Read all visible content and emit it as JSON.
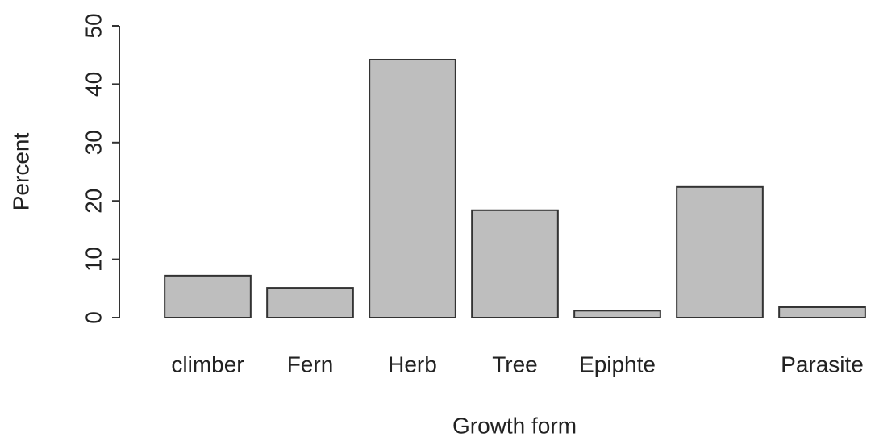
{
  "chart_data": {
    "type": "bar",
    "x_label": "Growth form",
    "y_label": "Percent",
    "categories": [
      "climber",
      "Fern",
      "Herb",
      "Tree",
      "Epiphte",
      null,
      "Parasite"
    ],
    "values": [
      7.2,
      5.1,
      44.2,
      18.4,
      1.2,
      22.4,
      1.8
    ],
    "color": "#bebebe",
    "ylim": [
      0,
      50
    ],
    "yticks": [
      0,
      10,
      20,
      30,
      40,
      50
    ],
    "grid": false
  }
}
